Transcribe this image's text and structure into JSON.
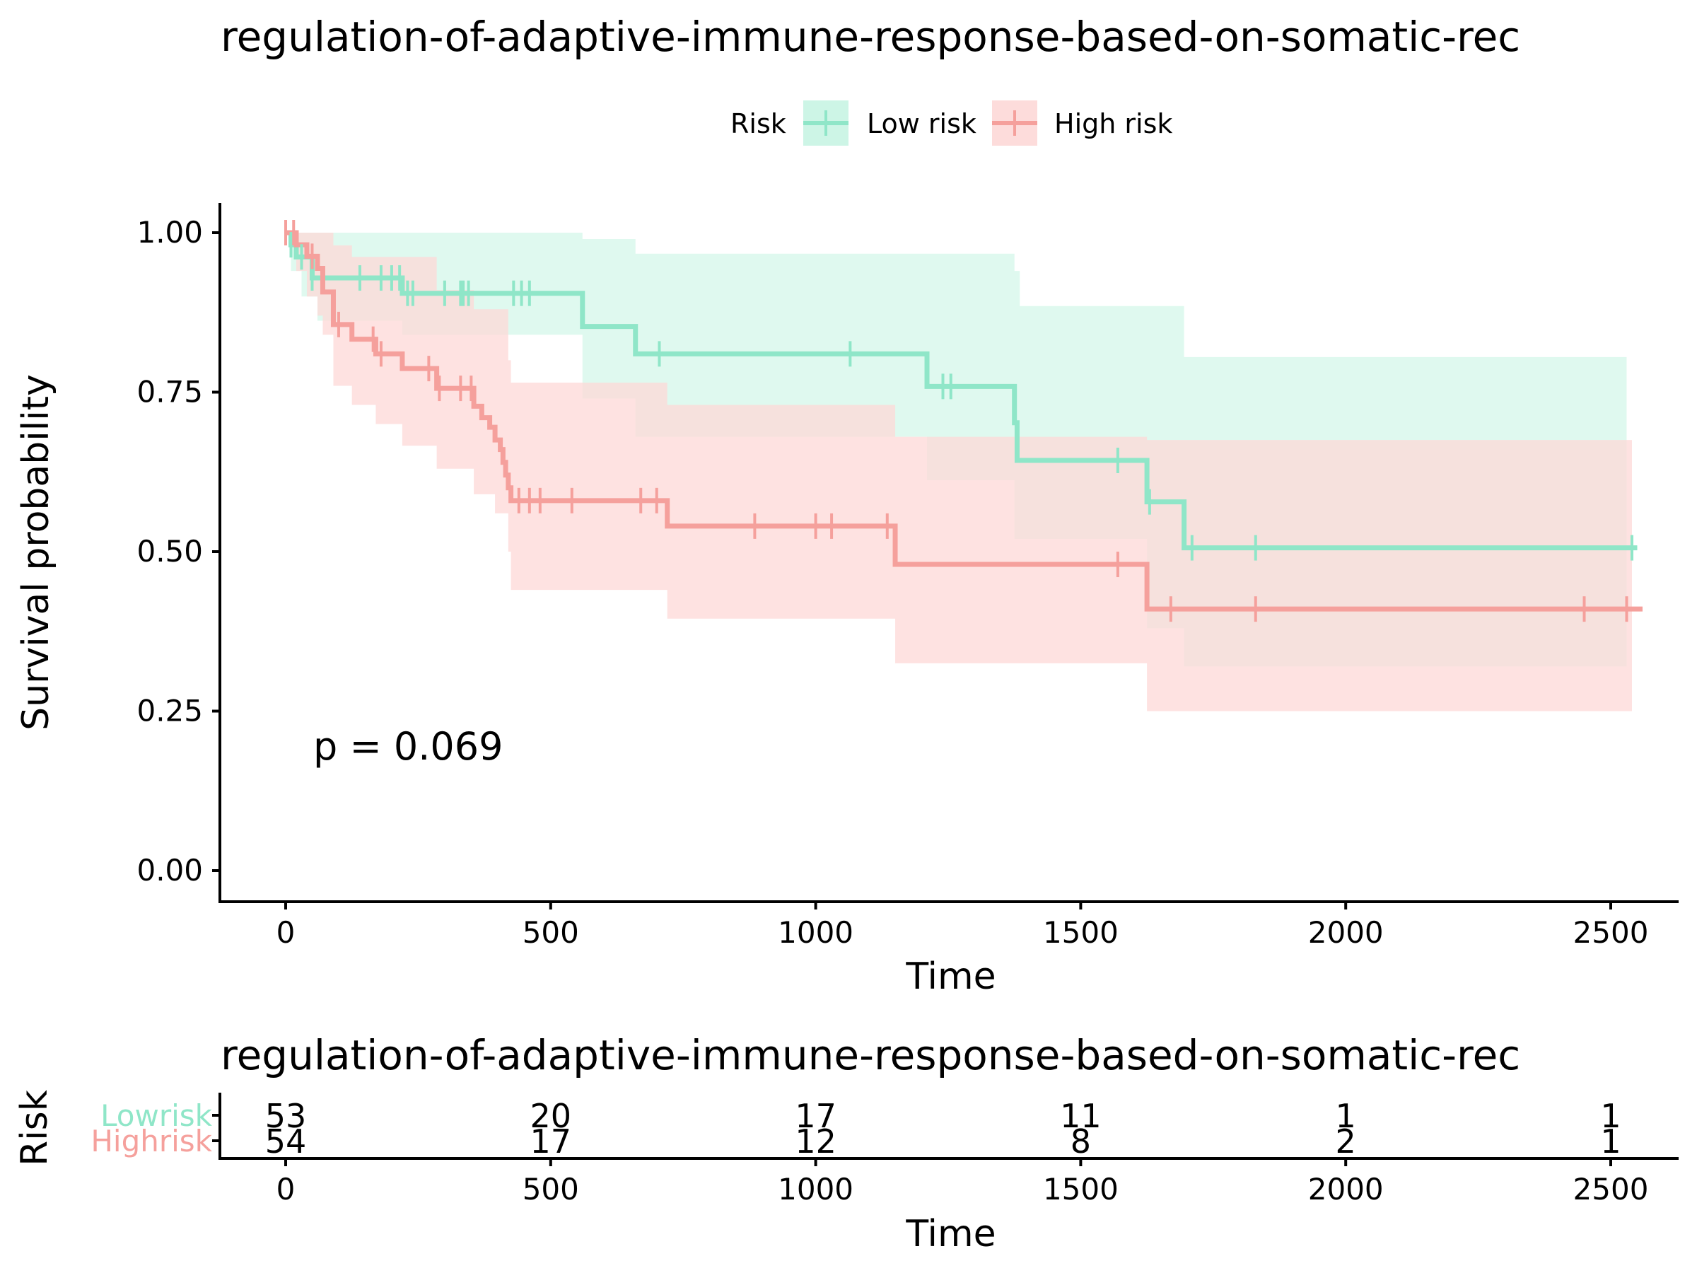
{
  "chart_data": [
    {
      "type": "line",
      "subtype": "kaplan-meier",
      "title": "regulation-of-adaptive-immune-response-based-on-somatic-rec",
      "xlabel": "Time",
      "ylabel": "Survival probability",
      "xlim": [
        -120,
        2600
      ],
      "ylim": [
        -0.05,
        1.05
      ],
      "x_ticks": [
        0,
        500,
        1000,
        1500,
        2000,
        2500
      ],
      "y_ticks": [
        0,
        0.25,
        0.5,
        0.75,
        1
      ],
      "y_tick_labels": [
        "0.00",
        "0.25",
        "0.50",
        "0.75",
        "1.00"
      ],
      "grid": false,
      "legend": {
        "title": "Risk",
        "placement": "top",
        "entries": [
          "Low risk",
          "High risk"
        ]
      },
      "annotation": "p = 0.069",
      "series": [
        {
          "name": "Low risk",
          "color": "#8fe6c8",
          "fill_color": "#b8f1dc",
          "steps": [
            [
              0,
              1.0
            ],
            [
              10,
              0.981
            ],
            [
              20,
              0.962
            ],
            [
              50,
              0.929
            ],
            [
              220,
              0.905
            ],
            [
              560,
              0.853
            ],
            [
              660,
              0.81
            ],
            [
              1210,
              0.759
            ],
            [
              1375,
              0.702
            ],
            [
              1380,
              0.643
            ],
            [
              1625,
              0.578
            ],
            [
              1695,
              0.506
            ],
            [
              2550,
              0.506
            ]
          ],
          "upper": [
            [
              0,
              1.0
            ],
            [
              20,
              1.0
            ],
            [
              560,
              0.99
            ],
            [
              660,
              0.967
            ],
            [
              1375,
              0.94
            ],
            [
              1385,
              0.885
            ],
            [
              1695,
              0.805
            ],
            [
              2530,
              0.805
            ]
          ],
          "lower": [
            [
              0,
              1.0
            ],
            [
              10,
              0.94
            ],
            [
              30,
              0.9
            ],
            [
              60,
              0.862
            ],
            [
              220,
              0.84
            ],
            [
              560,
              0.74
            ],
            [
              660,
              0.68
            ],
            [
              1210,
              0.612
            ],
            [
              1375,
              0.52
            ],
            [
              1625,
              0.38
            ],
            [
              1695,
              0.32
            ],
            [
              2530,
              0.32
            ]
          ],
          "censor_times": [
            10,
            30,
            50,
            140,
            180,
            200,
            215,
            230,
            240,
            300,
            330,
            335,
            345,
            430,
            445,
            460,
            705,
            1065,
            1240,
            1255,
            1570,
            1630,
            1710,
            1830,
            2540
          ]
        },
        {
          "name": "High risk",
          "color": "#f5a09c",
          "fill_color": "#fdd8d7",
          "steps": [
            [
              0,
              1.0
            ],
            [
              20,
              0.981
            ],
            [
              40,
              0.963
            ],
            [
              60,
              0.944
            ],
            [
              70,
              0.907
            ],
            [
              90,
              0.856
            ],
            [
              125,
              0.833
            ],
            [
              170,
              0.81
            ],
            [
              220,
              0.787
            ],
            [
              285,
              0.756
            ],
            [
              355,
              0.728
            ],
            [
              370,
              0.71
            ],
            [
              385,
              0.695
            ],
            [
              395,
              0.675
            ],
            [
              405,
              0.66
            ],
            [
              410,
              0.64
            ],
            [
              415,
              0.62
            ],
            [
              420,
              0.6
            ],
            [
              425,
              0.58
            ],
            [
              720,
              0.54
            ],
            [
              1150,
              0.48
            ],
            [
              1625,
              0.41
            ],
            [
              2560,
              0.41
            ]
          ],
          "upper": [
            [
              0,
              1.0
            ],
            [
              40,
              1.0
            ],
            [
              90,
              0.98
            ],
            [
              125,
              0.962
            ],
            [
              285,
              0.91
            ],
            [
              355,
              0.88
            ],
            [
              420,
              0.8
            ],
            [
              425,
              0.765
            ],
            [
              720,
              0.73
            ],
            [
              1150,
              0.68
            ],
            [
              1625,
              0.675
            ],
            [
              2540,
              0.675
            ]
          ],
          "lower": [
            [
              0,
              1.0
            ],
            [
              20,
              0.94
            ],
            [
              40,
              0.9
            ],
            [
              60,
              0.87
            ],
            [
              70,
              0.84
            ],
            [
              90,
              0.76
            ],
            [
              125,
              0.73
            ],
            [
              170,
              0.7
            ],
            [
              220,
              0.666
            ],
            [
              285,
              0.63
            ],
            [
              355,
              0.59
            ],
            [
              395,
              0.56
            ],
            [
              420,
              0.5
            ],
            [
              425,
              0.44
            ],
            [
              720,
              0.395
            ],
            [
              1150,
              0.325
            ],
            [
              1625,
              0.25
            ],
            [
              2540,
              0.25
            ]
          ],
          "censor_times": [
            0,
            15,
            50,
            100,
            165,
            180,
            270,
            290,
            330,
            350,
            440,
            460,
            480,
            540,
            670,
            700,
            885,
            1000,
            1030,
            1135,
            1570,
            1670,
            1830,
            2450,
            2530
          ]
        }
      ]
    },
    {
      "type": "table",
      "title": "regulation-of-adaptive-immune-response-based-on-somatic-rec",
      "xlabel": "Time",
      "ylabel": "Risk",
      "xlim": [
        -120,
        2600
      ],
      "x_ticks": [
        0,
        500,
        1000,
        1500,
        2000,
        2500
      ],
      "rows": [
        {
          "name": "Low risk",
          "label": "Lowrisk",
          "color": "#8fe6c8",
          "values": [
            53,
            20,
            17,
            11,
            1,
            1
          ]
        },
        {
          "name": "High risk",
          "label": "Highrisk",
          "color": "#f5a09c",
          "values": [
            54,
            17,
            12,
            8,
            2,
            1
          ]
        }
      ]
    }
  ]
}
